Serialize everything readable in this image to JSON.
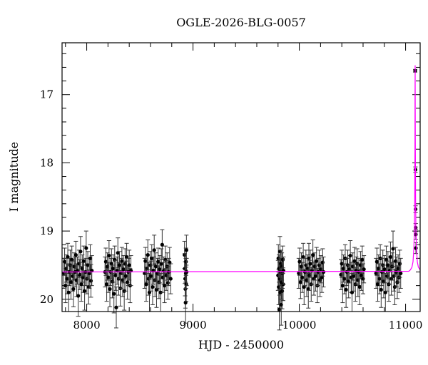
{
  "chart_data": {
    "type": "scatter",
    "title": "OGLE-2026-BLG-0057",
    "xlabel": "HJD - 2450000",
    "ylabel": "I magnitude",
    "xlim": [
      7768,
      11137
    ],
    "ylim": [
      20.18,
      16.24
    ],
    "y_inverted": true,
    "x_ticks": [
      8000,
      9000,
      10000,
      11000
    ],
    "x_minor_step": 200,
    "y_ticks": [
      17,
      18,
      19,
      20
    ],
    "y_minor_step": 0.2,
    "grid": false,
    "colors": {
      "points": "#000000",
      "errorbars": "#333333",
      "model": "#ff00ff"
    },
    "points": [
      [
        7785,
        19.62,
        0.22
      ],
      [
        7792,
        19.45,
        0.2
      ],
      [
        7800,
        19.8,
        0.25
      ],
      [
        7808,
        19.55,
        0.2
      ],
      [
        7815,
        19.7,
        0.22
      ],
      [
        7822,
        19.38,
        0.2
      ],
      [
        7830,
        19.9,
        0.28
      ],
      [
        7838,
        19.6,
        0.2
      ],
      [
        7845,
        19.5,
        0.22
      ],
      [
        7852,
        19.75,
        0.25
      ],
      [
        7860,
        19.42,
        0.2
      ],
      [
        7868,
        19.66,
        0.22
      ],
      [
        7875,
        19.85,
        0.26
      ],
      [
        7882,
        19.52,
        0.2
      ],
      [
        7890,
        19.6,
        0.22
      ],
      [
        7898,
        19.35,
        0.2
      ],
      [
        7905,
        19.72,
        0.24
      ],
      [
        7912,
        19.58,
        0.2
      ],
      [
        7920,
        19.95,
        0.3
      ],
      [
        7928,
        19.48,
        0.2
      ],
      [
        7935,
        19.64,
        0.22
      ],
      [
        7942,
        19.3,
        0.22
      ],
      [
        7950,
        19.78,
        0.25
      ],
      [
        7958,
        19.55,
        0.2
      ],
      [
        7965,
        19.68,
        0.22
      ],
      [
        7972,
        19.44,
        0.22
      ],
      [
        7980,
        19.88,
        0.28
      ],
      [
        7988,
        19.6,
        0.2
      ],
      [
        7995,
        19.25,
        0.25
      ],
      [
        8002,
        19.7,
        0.22
      ],
      [
        8010,
        19.5,
        0.2
      ],
      [
        8018,
        19.82,
        0.25
      ],
      [
        8025,
        19.62,
        0.22
      ],
      [
        8033,
        19.4,
        0.2
      ],
      [
        8040,
        19.73,
        0.24
      ],
      [
        8048,
        19.58,
        0.22
      ],
      [
        8172,
        19.6,
        0.22
      ],
      [
        8180,
        19.45,
        0.2
      ],
      [
        8188,
        19.78,
        0.25
      ],
      [
        8195,
        19.52,
        0.2
      ],
      [
        8203,
        19.68,
        0.22
      ],
      [
        8210,
        19.36,
        0.22
      ],
      [
        8218,
        19.85,
        0.26
      ],
      [
        8226,
        19.6,
        0.2
      ],
      [
        8233,
        19.48,
        0.22
      ],
      [
        8241,
        19.74,
        0.24
      ],
      [
        8248,
        19.55,
        0.2
      ],
      [
        8256,
        19.92,
        0.28
      ],
      [
        8263,
        19.42,
        0.2
      ],
      [
        8271,
        19.65,
        0.22
      ],
      [
        8278,
        20.12,
        0.3
      ],
      [
        8286,
        19.58,
        0.2
      ],
      [
        8293,
        19.32,
        0.22
      ],
      [
        8301,
        19.7,
        0.24
      ],
      [
        8308,
        19.5,
        0.2
      ],
      [
        8316,
        19.84,
        0.26
      ],
      [
        8323,
        19.62,
        0.22
      ],
      [
        8331,
        19.44,
        0.2
      ],
      [
        8338,
        19.72,
        0.24
      ],
      [
        8346,
        19.56,
        0.2
      ],
      [
        8353,
        19.88,
        0.28
      ],
      [
        8361,
        19.48,
        0.22
      ],
      [
        8368,
        19.66,
        0.22
      ],
      [
        8376,
        19.38,
        0.2
      ],
      [
        8384,
        19.75,
        0.25
      ],
      [
        8392,
        19.6,
        0.2
      ],
      [
        8400,
        19.5,
        0.22
      ],
      [
        8408,
        19.8,
        0.25
      ],
      [
        8416,
        19.58,
        0.22
      ],
      [
        8545,
        19.62,
        0.22
      ],
      [
        8552,
        19.44,
        0.2
      ],
      [
        8560,
        19.78,
        0.25
      ],
      [
        8567,
        19.55,
        0.2
      ],
      [
        8575,
        19.35,
        0.22
      ],
      [
        8582,
        19.7,
        0.24
      ],
      [
        8590,
        19.9,
        0.28
      ],
      [
        8597,
        19.5,
        0.2
      ],
      [
        8605,
        19.66,
        0.22
      ],
      [
        8612,
        19.4,
        0.2
      ],
      [
        8620,
        19.82,
        0.26
      ],
      [
        8627,
        19.58,
        0.2
      ],
      [
        8635,
        19.28,
        0.22
      ],
      [
        8642,
        19.72,
        0.24
      ],
      [
        8650,
        19.52,
        0.2
      ],
      [
        8657,
        19.86,
        0.26
      ],
      [
        8665,
        19.62,
        0.22
      ],
      [
        8672,
        19.45,
        0.2
      ],
      [
        8680,
        19.75,
        0.24
      ],
      [
        8687,
        19.56,
        0.2
      ],
      [
        8695,
        19.9,
        0.28
      ],
      [
        8702,
        19.48,
        0.22
      ],
      [
        8710,
        19.2,
        0.22
      ],
      [
        8717,
        19.68,
        0.22
      ],
      [
        8725,
        19.58,
        0.2
      ],
      [
        8732,
        19.8,
        0.25
      ],
      [
        8740,
        19.42,
        0.2
      ],
      [
        8748,
        19.65,
        0.22
      ],
      [
        8756,
        19.52,
        0.2
      ],
      [
        8764,
        19.76,
        0.24
      ],
      [
        8772,
        19.6,
        0.2
      ],
      [
        8780,
        19.46,
        0.22
      ],
      [
        8790,
        19.7,
        0.22
      ],
      [
        8920,
        19.35,
        0.2
      ],
      [
        8923,
        19.55,
        0.22
      ],
      [
        8926,
        19.7,
        0.25
      ],
      [
        8928,
        19.85,
        0.28
      ],
      [
        8930,
        20.05,
        0.3
      ],
      [
        8932,
        19.62,
        0.22
      ],
      [
        8934,
        19.45,
        0.2
      ],
      [
        8936,
        19.78,
        0.25
      ],
      [
        8938,
        19.28,
        0.22
      ],
      [
        8940,
        19.6,
        0.2
      ],
      [
        9800,
        19.65,
        0.22
      ],
      [
        9803,
        19.4,
        0.2
      ],
      [
        9806,
        19.82,
        0.26
      ],
      [
        9809,
        19.55,
        0.2
      ],
      [
        9812,
        20.15,
        0.3
      ],
      [
        9815,
        19.7,
        0.24
      ],
      [
        9818,
        19.3,
        0.22
      ],
      [
        9821,
        19.9,
        0.28
      ],
      [
        9824,
        19.6,
        0.2
      ],
      [
        9827,
        19.48,
        0.2
      ],
      [
        9830,
        20.08,
        0.3
      ],
      [
        9833,
        19.75,
        0.25
      ],
      [
        9836,
        19.52,
        0.2
      ],
      [
        9839,
        19.88,
        0.26
      ],
      [
        9842,
        19.62,
        0.22
      ],
      [
        9845,
        19.42,
        0.2
      ],
      [
        9848,
        19.78,
        0.24
      ],
      [
        9851,
        19.58,
        0.2
      ],
      [
        9995,
        19.62,
        0.22
      ],
      [
        10003,
        19.45,
        0.2
      ],
      [
        10012,
        19.75,
        0.24
      ],
      [
        10020,
        19.52,
        0.2
      ],
      [
        10028,
        19.68,
        0.22
      ],
      [
        10037,
        19.38,
        0.2
      ],
      [
        10045,
        19.82,
        0.26
      ],
      [
        10053,
        19.6,
        0.2
      ],
      [
        10062,
        19.5,
        0.22
      ],
      [
        10070,
        19.72,
        0.24
      ],
      [
        10078,
        19.55,
        0.2
      ],
      [
        10085,
        19.85,
        0.28
      ],
      [
        10090,
        19.4,
        0.22
      ],
      [
        10095,
        19.65,
        0.22
      ],
      [
        10103,
        19.48,
        0.2
      ],
      [
        10112,
        19.78,
        0.25
      ],
      [
        10120,
        19.58,
        0.2
      ],
      [
        10128,
        19.35,
        0.22
      ],
      [
        10137,
        19.7,
        0.24
      ],
      [
        10145,
        19.52,
        0.2
      ],
      [
        10153,
        19.66,
        0.22
      ],
      [
        10162,
        19.44,
        0.2
      ],
      [
        10170,
        19.8,
        0.25
      ],
      [
        10178,
        19.6,
        0.2
      ],
      [
        10187,
        19.5,
        0.22
      ],
      [
        10195,
        19.72,
        0.24
      ],
      [
        10203,
        19.56,
        0.2
      ],
      [
        10212,
        19.68,
        0.22
      ],
      [
        10220,
        19.46,
        0.2
      ],
      [
        10228,
        19.6,
        0.22
      ],
      [
        10392,
        19.64,
        0.22
      ],
      [
        10400,
        19.48,
        0.2
      ],
      [
        10408,
        19.8,
        0.25
      ],
      [
        10416,
        19.55,
        0.2
      ],
      [
        10424,
        19.7,
        0.22
      ],
      [
        10432,
        19.4,
        0.2
      ],
      [
        10440,
        19.86,
        0.26
      ],
      [
        10448,
        19.6,
        0.2
      ],
      [
        10456,
        19.5,
        0.22
      ],
      [
        10464,
        19.74,
        0.24
      ],
      [
        10472,
        19.56,
        0.2
      ],
      [
        10480,
        19.36,
        0.22
      ],
      [
        10488,
        19.68,
        0.22
      ],
      [
        10496,
        19.9,
        0.28
      ],
      [
        10504,
        19.52,
        0.2
      ],
      [
        10512,
        19.66,
        0.22
      ],
      [
        10520,
        19.44,
        0.2
      ],
      [
        10528,
        19.78,
        0.25
      ],
      [
        10536,
        19.58,
        0.2
      ],
      [
        10544,
        19.48,
        0.22
      ],
      [
        10552,
        19.72,
        0.24
      ],
      [
        10560,
        19.6,
        0.2
      ],
      [
        10568,
        19.82,
        0.26
      ],
      [
        10576,
        19.5,
        0.2
      ],
      [
        10584,
        19.65,
        0.22
      ],
      [
        10592,
        19.42,
        0.2
      ],
      [
        10600,
        19.7,
        0.22
      ],
      [
        10608,
        19.56,
        0.2
      ],
      [
        10722,
        19.62,
        0.22
      ],
      [
        10730,
        19.45,
        0.2
      ],
      [
        10738,
        19.78,
        0.25
      ],
      [
        10746,
        19.55,
        0.2
      ],
      [
        10754,
        19.7,
        0.22
      ],
      [
        10762,
        19.4,
        0.2
      ],
      [
        10770,
        19.86,
        0.26
      ],
      [
        10778,
        19.6,
        0.2
      ],
      [
        10786,
        19.5,
        0.22
      ],
      [
        10794,
        19.74,
        0.24
      ],
      [
        10802,
        19.56,
        0.2
      ],
      [
        10810,
        19.9,
        0.28
      ],
      [
        10818,
        19.42,
        0.2
      ],
      [
        10826,
        19.66,
        0.22
      ],
      [
        10834,
        19.5,
        0.2
      ],
      [
        10842,
        19.78,
        0.25
      ],
      [
        10850,
        19.58,
        0.2
      ],
      [
        10858,
        19.38,
        0.22
      ],
      [
        10866,
        19.7,
        0.24
      ],
      [
        10874,
        19.52,
        0.2
      ],
      [
        10882,
        19.26,
        0.26
      ],
      [
        10890,
        19.66,
        0.22
      ],
      [
        10898,
        19.82,
        0.26
      ],
      [
        10906,
        19.44,
        0.2
      ],
      [
        10914,
        19.6,
        0.22
      ],
      [
        10922,
        19.75,
        0.24
      ],
      [
        10930,
        19.55,
        0.2
      ],
      [
        10938,
        19.68,
        0.22
      ],
      [
        10946,
        19.48,
        0.2
      ],
      [
        10954,
        19.62,
        0.22
      ],
      [
        11090,
        16.65,
        0.02
      ],
      [
        11093,
        18.1,
        0.04
      ],
      [
        11094,
        18.68,
        0.05
      ],
      [
        11095,
        18.95,
        0.06
      ],
      [
        11096,
        19.05,
        0.07
      ],
      [
        11097,
        19.25,
        0.08
      ]
    ],
    "model": {
      "x": [
        7768,
        11030,
        11045,
        11060,
        11070,
        11078,
        11083,
        11086,
        11088,
        11089,
        11090,
        11091,
        11092,
        11094,
        11097,
        11102,
        11110,
        11120,
        11137
      ],
      "y": [
        19.6,
        19.59,
        19.57,
        19.53,
        19.45,
        19.25,
        18.95,
        18.5,
        17.8,
        17.1,
        16.57,
        17.1,
        17.8,
        18.5,
        18.95,
        19.25,
        19.45,
        19.53,
        19.57
      ]
    }
  }
}
